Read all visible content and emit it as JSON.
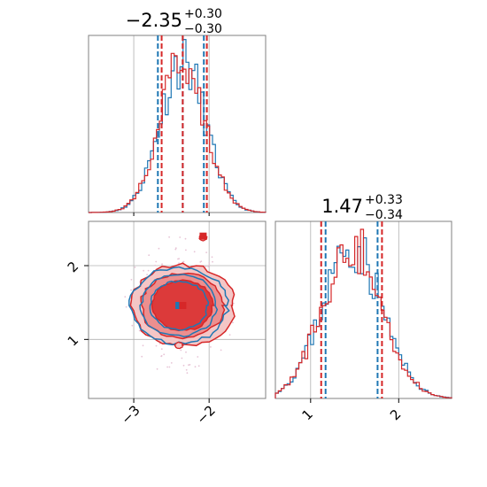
{
  "chart_data": {
    "type": "corner",
    "title_top": {
      "value": "−2.35",
      "sup": "+0.30",
      "sub": "−0.30"
    },
    "title_bottom": {
      "value": "1.47",
      "sup": "+0.33",
      "sub": "−0.34"
    },
    "x_ticks": [
      "−3",
      "−2"
    ],
    "y_ticks": [
      "2",
      "1"
    ],
    "bx_ticks": [
      "1",
      "2"
    ],
    "xlim": [
      -3.6,
      -1.25
    ],
    "ylim": [
      0.2,
      2.6
    ],
    "bxlim": [
      0.6,
      2.6
    ],
    "colors": {
      "blue": "#1f77b4",
      "red": "#d62728",
      "grid": "#b0b0b0",
      "frame": "#808080"
    },
    "series": [
      {
        "color": "blue",
        "peak_x": -2.35,
        "hist_x_quantiles": [
          -2.68,
          -2.07
        ],
        "peak_y": 1.47,
        "hist_y_quantiles": [
          1.17,
          1.76
        ],
        "marker": [
          -2.4,
          1.46
        ]
      },
      {
        "color": "red",
        "peak_x": -2.35,
        "hist_x_quantiles": [
          -2.63,
          -2.03
        ],
        "peak_y": 1.47,
        "hist_y_quantiles": [
          1.12,
          1.81
        ],
        "marker": [
          -2.35,
          1.46
        ]
      }
    ],
    "outlier_marker": {
      "color": "red",
      "x": -2.08,
      "y": 2.4
    },
    "grid": true
  }
}
